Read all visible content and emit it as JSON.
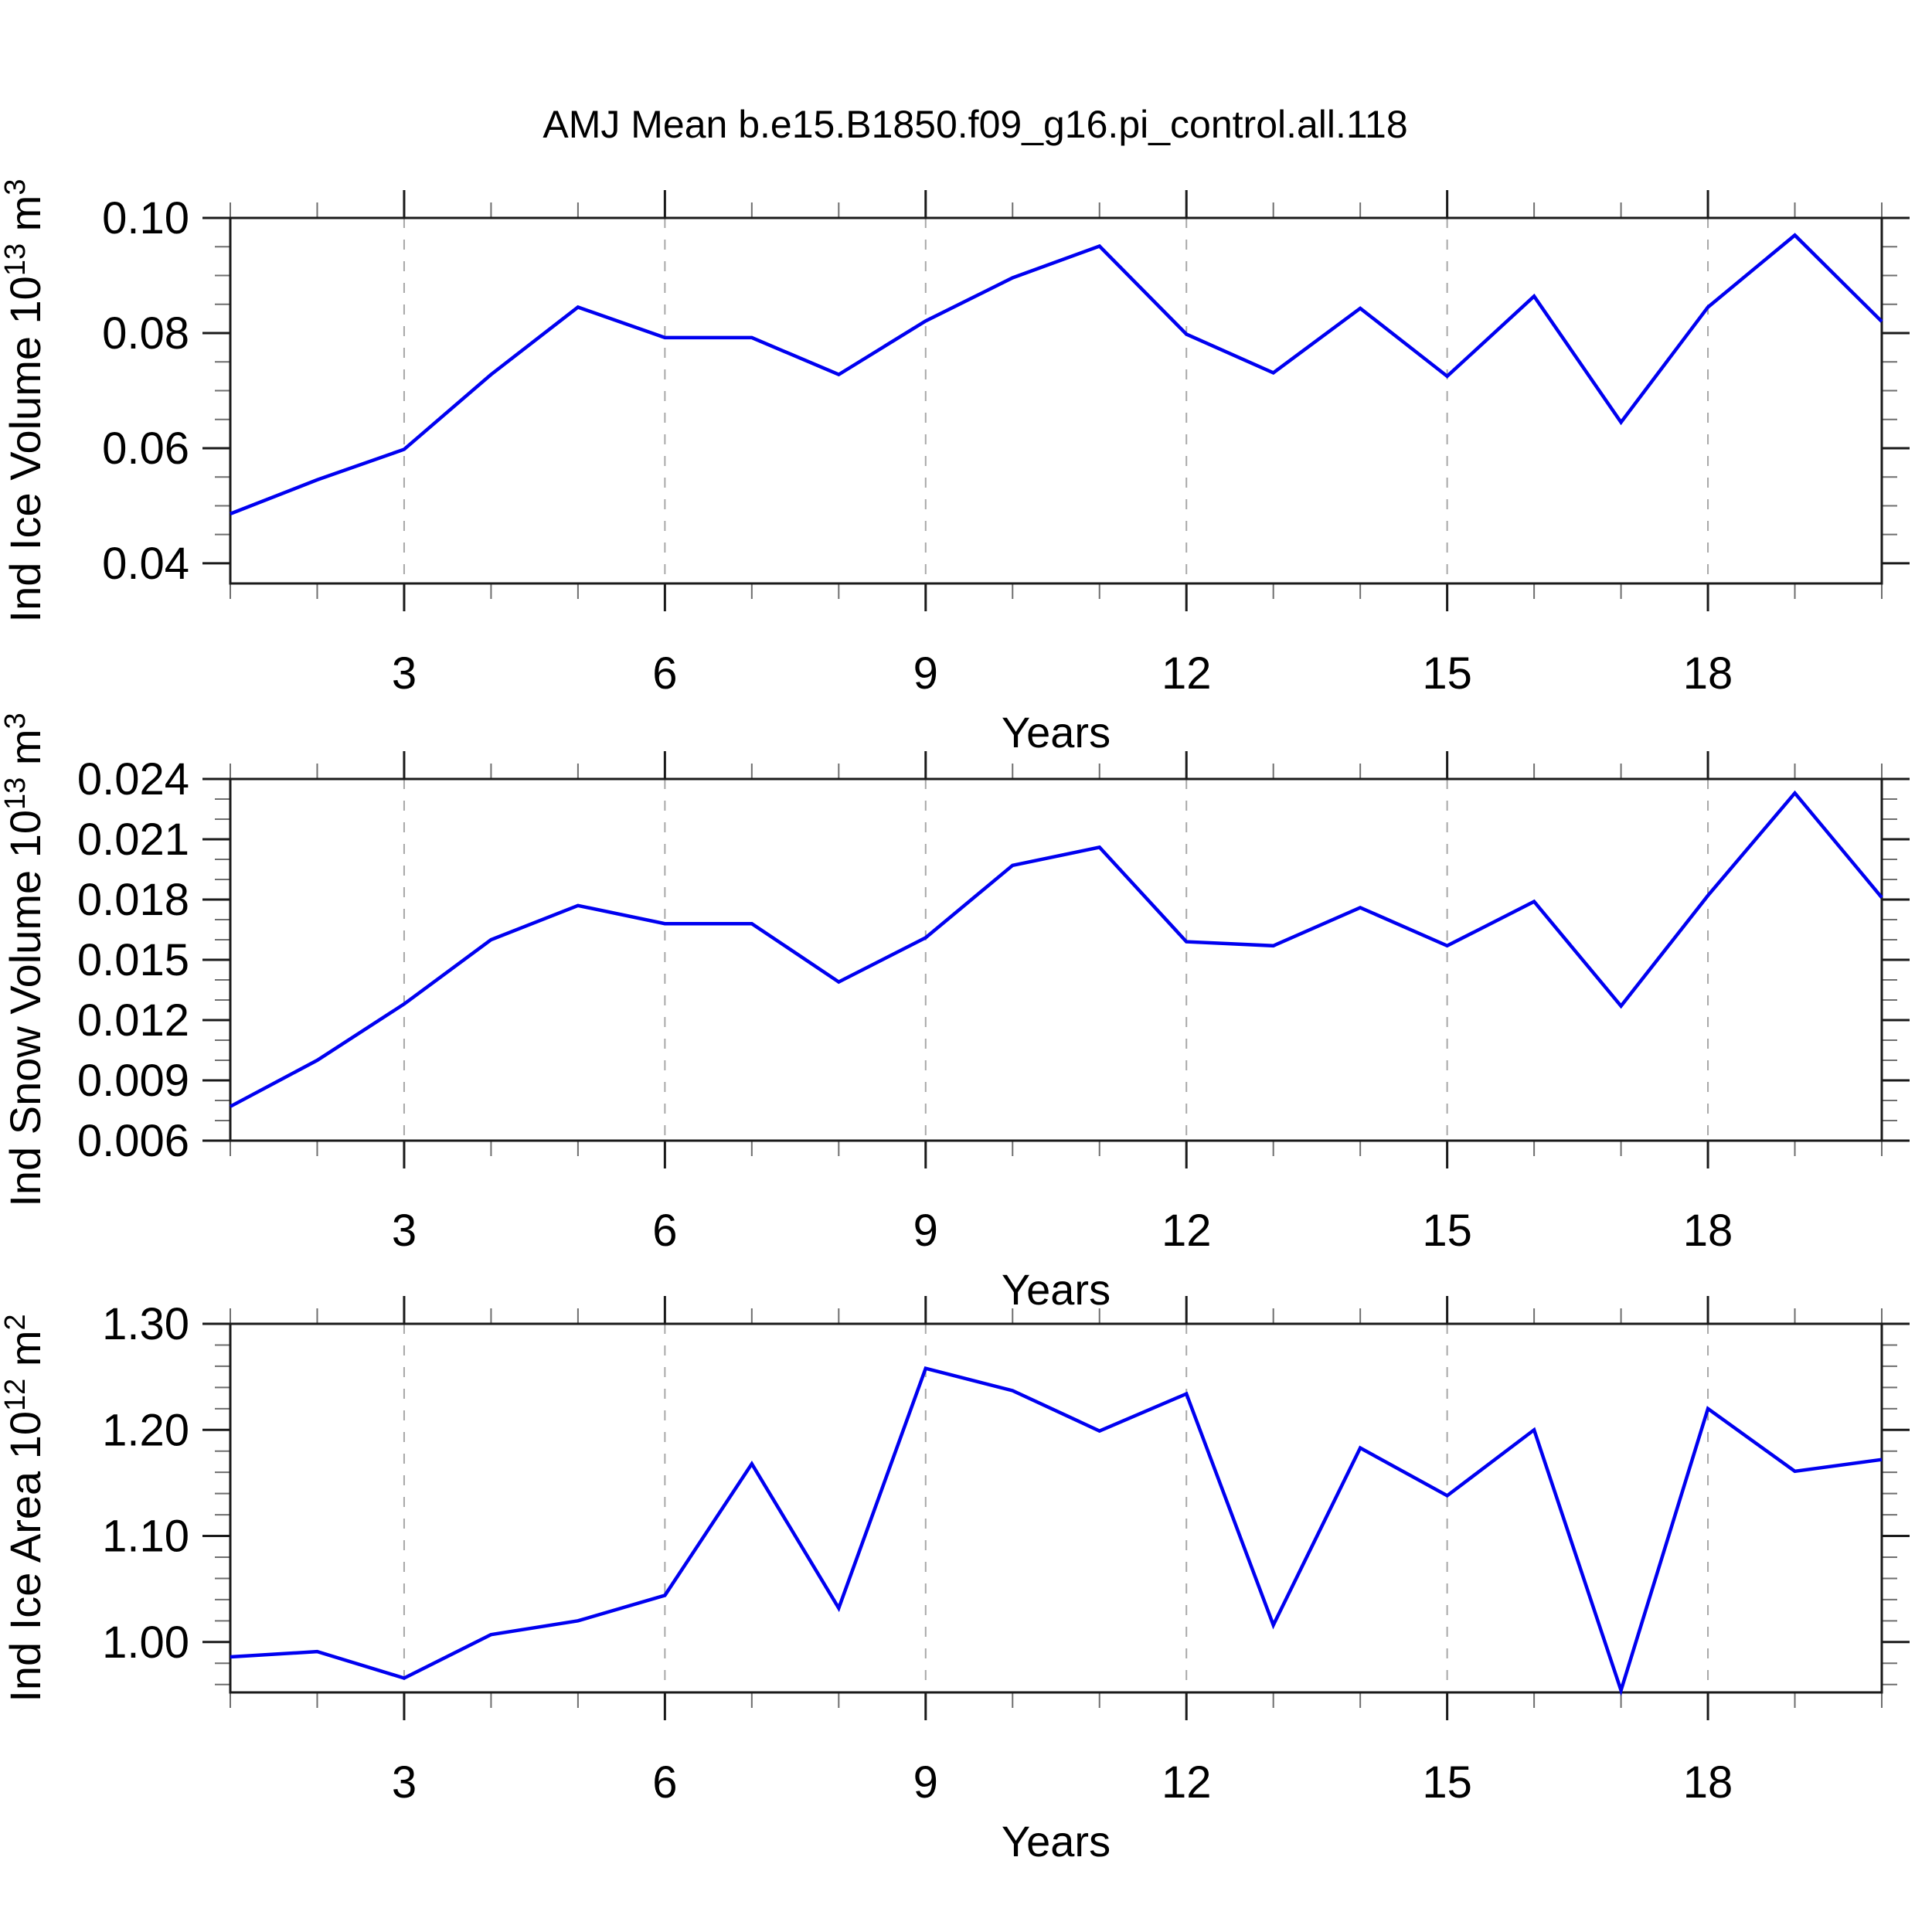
{
  "figure": {
    "title": "AMJ Mean b.e15.B1850.f09_g16.pi_control.all.118",
    "line_color": "#0000f0",
    "background": "#ffffff",
    "frame_color": "#1a1a1a",
    "grid_color": "#a8a8a8",
    "minor_tick_color": "#6e6e6e"
  },
  "chart_data": [
    {
      "type": "line",
      "name": "ice-volume",
      "xlabel": "Years",
      "ylabel": {
        "text": "Ind Ice Volume 10",
        "sup": "13",
        "text2": " m",
        "sup2": "3"
      },
      "x": [
        1,
        2,
        3,
        4,
        5,
        6,
        7,
        8,
        9,
        10,
        11,
        12,
        13,
        14,
        15,
        16,
        17,
        18,
        19,
        20
      ],
      "values": [
        0.0486,
        0.0545,
        0.0598,
        0.0728,
        0.0845,
        0.0792,
        0.0792,
        0.0728,
        0.0821,
        0.0896,
        0.0951,
        0.0798,
        0.0731,
        0.0843,
        0.0725,
        0.0864,
        0.0645,
        0.0845,
        0.097,
        0.082
      ],
      "xlim": [
        1,
        20
      ],
      "ylim": [
        0.0365,
        0.1
      ],
      "x_major_ticks": [
        3,
        6,
        9,
        12,
        15,
        18
      ],
      "x_minor_step": 1,
      "y_major_ticks": [
        0.04,
        0.06,
        0.08,
        0.1
      ],
      "y_tick_labels": [
        "0.04",
        "0.06",
        "0.08",
        "0.10"
      ],
      "y_minor_step": 0.005,
      "grid": "vertical-dashed",
      "legend": "none"
    },
    {
      "type": "line",
      "name": "snow-volume",
      "xlabel": "Years",
      "ylabel": {
        "text": "Ind Snow Volume 10",
        "sup": "13",
        "text2": " m",
        "sup2": "3"
      },
      "x": [
        1,
        2,
        3,
        4,
        5,
        6,
        7,
        8,
        9,
        10,
        11,
        12,
        13,
        14,
        15,
        16,
        17,
        18,
        19,
        20
      ],
      "values": [
        0.0077,
        0.01,
        0.0128,
        0.016,
        0.0177,
        0.0168,
        0.0168,
        0.0139,
        0.0161,
        0.0197,
        0.0206,
        0.0159,
        0.0157,
        0.0176,
        0.0157,
        0.0179,
        0.0127,
        0.0182,
        0.0233,
        0.0181
      ],
      "xlim": [
        1,
        20
      ],
      "ylim": [
        0.006,
        0.024
      ],
      "x_major_ticks": [
        3,
        6,
        9,
        12,
        15,
        18
      ],
      "x_minor_step": 1,
      "y_major_ticks": [
        0.006,
        0.009,
        0.012,
        0.015,
        0.018,
        0.021,
        0.024
      ],
      "y_tick_labels": [
        "0.006",
        "0.009",
        "0.012",
        "0.015",
        "0.018",
        "0.021",
        "0.024"
      ],
      "y_minor_step": 0.001,
      "grid": "vertical-dashed",
      "legend": "none"
    },
    {
      "type": "line",
      "name": "ice-area",
      "xlabel": "Years",
      "ylabel": {
        "text": "Ind Ice Area 10",
        "sup": "12",
        "text2": " m",
        "sup2": "2"
      },
      "x": [
        1,
        2,
        3,
        4,
        5,
        6,
        7,
        8,
        9,
        10,
        11,
        12,
        13,
        14,
        15,
        16,
        17,
        18,
        19,
        20
      ],
      "values": [
        0.986,
        0.991,
        0.966,
        1.007,
        1.02,
        1.044,
        1.168,
        1.032,
        1.258,
        1.237,
        1.199,
        1.234,
        1.016,
        1.183,
        1.138,
        1.2,
        0.9545,
        1.22,
        1.161,
        1.172
      ],
      "xlim": [
        1,
        20
      ],
      "ylim": [
        0.9525,
        1.3
      ],
      "x_major_ticks": [
        3,
        6,
        9,
        12,
        15,
        18
      ],
      "x_minor_step": 1,
      "y_major_ticks": [
        1.0,
        1.1,
        1.2,
        1.3
      ],
      "y_tick_labels": [
        "1.00",
        "1.10",
        "1.20",
        "1.30"
      ],
      "y_minor_step": 0.02,
      "grid": "vertical-dashed",
      "legend": "none"
    }
  ]
}
